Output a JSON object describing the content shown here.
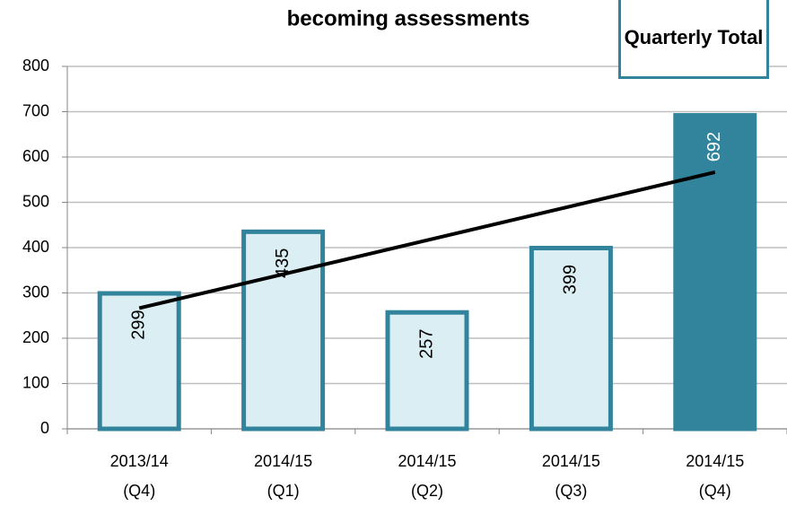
{
  "chart_data": {
    "type": "bar",
    "title": "becoming assessments",
    "legend": "Quarterly Total",
    "categories": [
      [
        "2013/14",
        "(Q4)"
      ],
      [
        "2014/15",
        "(Q1)"
      ],
      [
        "2014/15",
        "(Q2)"
      ],
      [
        "2014/15",
        "(Q3)"
      ],
      [
        "2014/15",
        "(Q4)"
      ]
    ],
    "values": [
      299,
      435,
      257,
      399,
      692
    ],
    "colors": [
      "#daeef3",
      "#daeef3",
      "#daeef3",
      "#daeef3",
      "#31849b"
    ],
    "edge_color": "#31849b",
    "label_colors": [
      "#000000",
      "#000000",
      "#000000",
      "#000000",
      "#ffffff"
    ],
    "trendline": true,
    "ylim": [
      0,
      800
    ],
    "yticks": [
      0,
      100,
      200,
      300,
      400,
      500,
      600,
      700,
      800
    ],
    "grid": true
  }
}
